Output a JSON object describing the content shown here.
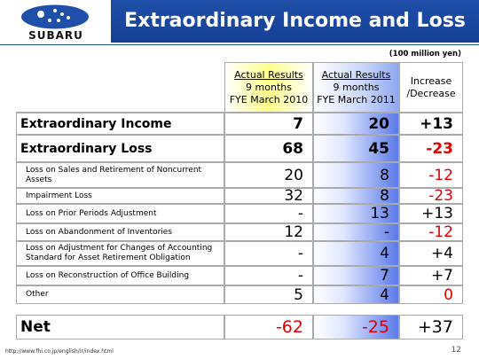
{
  "header": {
    "logo_text": "SUBARU",
    "title": "Extraordinary Income and Loss"
  },
  "table": {
    "unit": "(100 million yen)",
    "headers": [
      [
        "Actual Results",
        "9 months",
        "FYE March 2010"
      ],
      [
        "Actual Results",
        "9 months",
        "FYE March 2011"
      ],
      [
        "Increase",
        "/Decrease"
      ]
    ],
    "main_rows": [
      {
        "label": "Extraordinary Income",
        "cells": [
          "7",
          "20",
          "+13"
        ],
        "red": []
      },
      {
        "label": "Extraordinary Loss",
        "cells": [
          "68",
          "45",
          "-23"
        ],
        "red": [
          2
        ]
      }
    ],
    "detail_rows": [
      {
        "label": "Loss on Sales and Retirement of Noncurrent Assets",
        "cells": [
          "20",
          "8",
          "-12"
        ],
        "red": [
          2
        ]
      },
      {
        "label": "Impairment Loss",
        "cells": [
          "32",
          "8",
          "-23"
        ],
        "red": [
          2
        ]
      },
      {
        "label": "Loss on Prior Periods Adjustment",
        "cells": [
          "-",
          "13",
          "+13"
        ],
        "red": []
      },
      {
        "label": "Loss on Abandonment of Inventories",
        "cells": [
          "12",
          "-",
          "-12"
        ],
        "red": [
          2
        ]
      },
      {
        "label": "Loss on Adjustment for Changes of Accounting Standard for Asset Retirement Obligation",
        "cells": [
          "-",
          "4",
          "+4"
        ],
        "red": []
      },
      {
        "label": "Loss on Reconstruction of Office Building",
        "cells": [
          "-",
          "7",
          "+7"
        ],
        "red": []
      },
      {
        "label": "Other",
        "cells": [
          "5",
          "4",
          "0"
        ],
        "red": [
          2
        ]
      }
    ],
    "net_row": {
      "label": "Net",
      "cells": [
        "-62",
        "-25",
        "+37"
      ],
      "red": [
        0,
        1
      ]
    }
  },
  "footer": {
    "url": "http://www.fhi.co.jp/english/ir/index.html",
    "page": "12"
  }
}
